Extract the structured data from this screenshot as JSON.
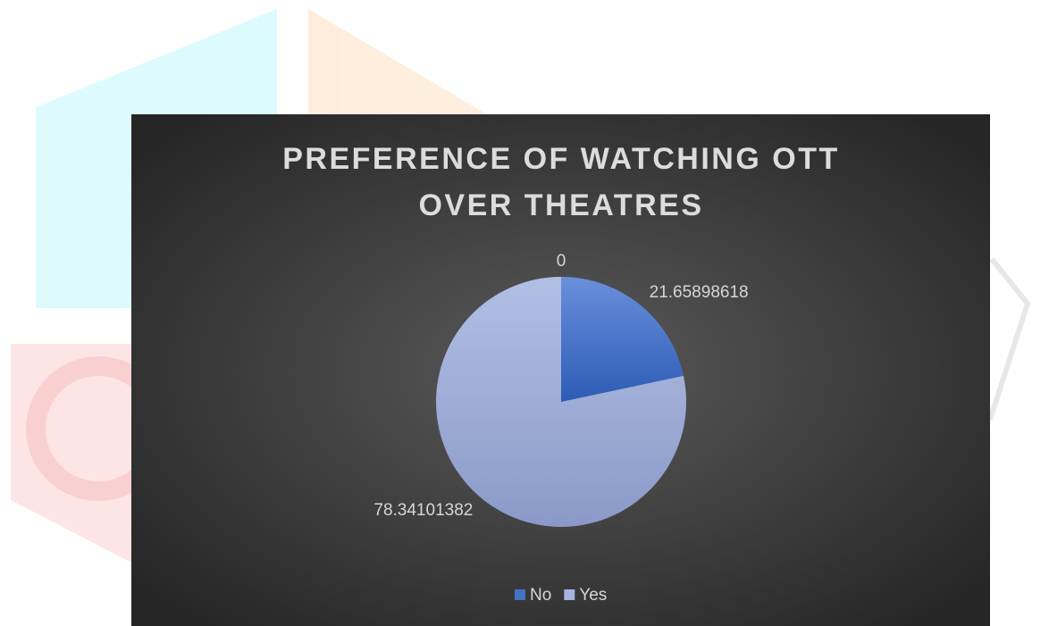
{
  "chart_data": {
    "type": "pie",
    "title": "PREFERENCE OF WATCHING OTT OVER THEATRES",
    "categories": [
      "No",
      "Yes",
      null
    ],
    "values": [
      21.65898618,
      78.34101382,
      0
    ],
    "colors": [
      "#4472c4",
      "#a5b3df",
      "#264478"
    ],
    "legend": "bottom"
  }
}
